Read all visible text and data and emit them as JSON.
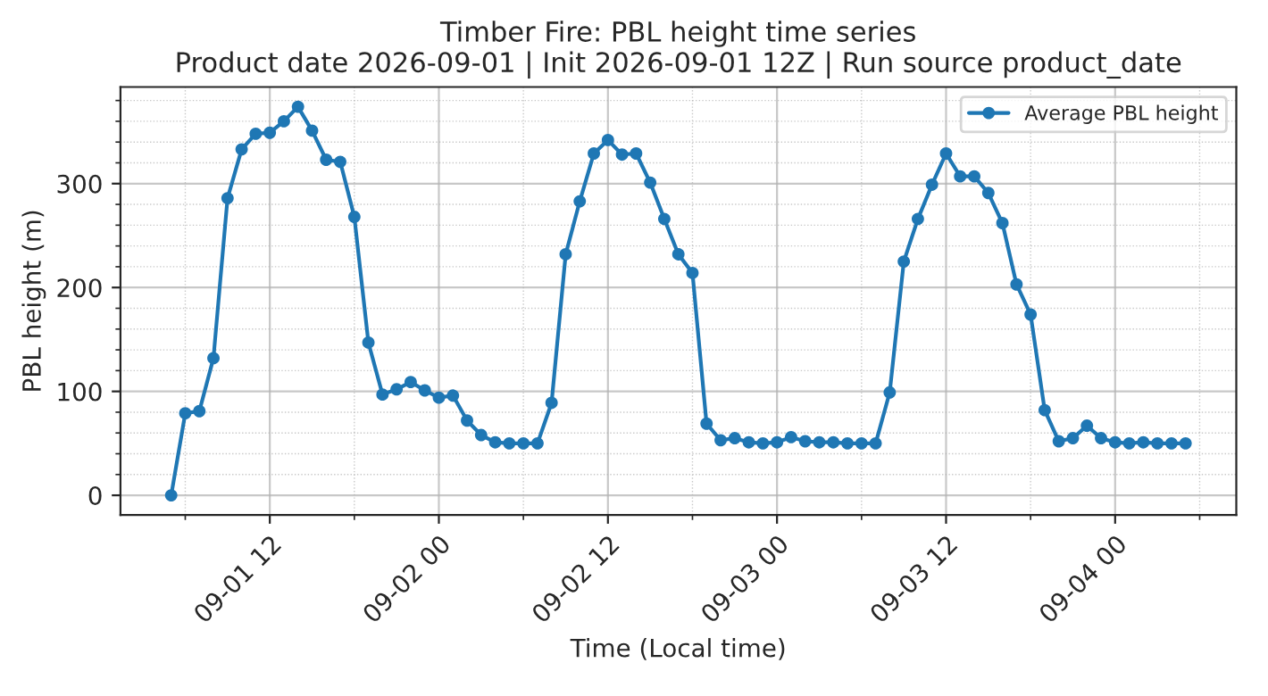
{
  "chart_data": {
    "type": "line",
    "title": "Timber Fire: PBL height time series\nProduct date 2026-09-01 | Init 2026-09-01 12Z | Run source product_date",
    "xlabel": "Time (Local time)",
    "ylabel": "PBL height (m)",
    "x": [
      "2026-09-01T05:00",
      "2026-09-01T06:00",
      "2026-09-01T07:00",
      "2026-09-01T08:00",
      "2026-09-01T09:00",
      "2026-09-01T10:00",
      "2026-09-01T11:00",
      "2026-09-01T12:00",
      "2026-09-01T13:00",
      "2026-09-01T14:00",
      "2026-09-01T15:00",
      "2026-09-01T16:00",
      "2026-09-01T17:00",
      "2026-09-01T18:00",
      "2026-09-01T19:00",
      "2026-09-01T20:00",
      "2026-09-01T21:00",
      "2026-09-01T22:00",
      "2026-09-01T23:00",
      "2026-09-02T00:00",
      "2026-09-02T01:00",
      "2026-09-02T02:00",
      "2026-09-02T03:00",
      "2026-09-02T04:00",
      "2026-09-02T05:00",
      "2026-09-02T06:00",
      "2026-09-02T07:00",
      "2026-09-02T08:00",
      "2026-09-02T09:00",
      "2026-09-02T10:00",
      "2026-09-02T11:00",
      "2026-09-02T12:00",
      "2026-09-02T13:00",
      "2026-09-02T14:00",
      "2026-09-02T15:00",
      "2026-09-02T16:00",
      "2026-09-02T17:00",
      "2026-09-02T18:00",
      "2026-09-02T19:00",
      "2026-09-02T20:00",
      "2026-09-02T21:00",
      "2026-09-02T22:00",
      "2026-09-02T23:00",
      "2026-09-03T00:00",
      "2026-09-03T01:00",
      "2026-09-03T02:00",
      "2026-09-03T03:00",
      "2026-09-03T04:00",
      "2026-09-03T05:00",
      "2026-09-03T06:00",
      "2026-09-03T07:00",
      "2026-09-03T08:00",
      "2026-09-03T09:00",
      "2026-09-03T10:00",
      "2026-09-03T11:00",
      "2026-09-03T12:00",
      "2026-09-03T13:00",
      "2026-09-03T14:00",
      "2026-09-03T15:00",
      "2026-09-03T16:00",
      "2026-09-03T17:00",
      "2026-09-03T18:00",
      "2026-09-03T19:00",
      "2026-09-03T20:00",
      "2026-09-03T21:00",
      "2026-09-03T22:00",
      "2026-09-03T23:00",
      "2026-09-04T00:00",
      "2026-09-04T01:00",
      "2026-09-04T02:00",
      "2026-09-04T03:00",
      "2026-09-04T04:00",
      "2026-09-04T05:00"
    ],
    "series": [
      {
        "name": "Average PBL height",
        "color": "#1f77b4",
        "values": [
          0,
          79,
          81,
          132,
          286,
          333,
          348,
          349,
          360,
          374,
          351,
          323,
          321,
          268,
          147,
          97,
          102,
          109,
          101,
          94,
          96,
          72,
          58,
          51,
          50,
          50,
          50,
          89,
          232,
          283,
          329,
          342,
          328,
          329,
          301,
          266,
          232,
          214,
          69,
          53,
          55,
          51,
          50,
          51,
          56,
          52,
          51,
          51,
          50,
          50,
          50,
          99,
          225,
          266,
          299,
          329,
          307,
          307,
          291,
          262,
          203,
          174,
          82,
          52,
          55,
          67,
          55,
          51,
          50,
          51,
          50,
          50,
          50
        ]
      }
    ],
    "xlim": [
      "2026-09-01T01:24",
      "2026-09-04T08:36"
    ],
    "xticks": [
      {
        "value": "2026-09-01T06:00",
        "label": null
      },
      {
        "value": "2026-09-01T12:00",
        "label": "09-01 12"
      },
      {
        "value": "2026-09-01T18:00",
        "label": null
      },
      {
        "value": "2026-09-02T00:00",
        "label": "09-02 00"
      },
      {
        "value": "2026-09-02T06:00",
        "label": null
      },
      {
        "value": "2026-09-02T12:00",
        "label": "09-02 12"
      },
      {
        "value": "2026-09-02T18:00",
        "label": null
      },
      {
        "value": "2026-09-03T00:00",
        "label": "09-03 00"
      },
      {
        "value": "2026-09-03T06:00",
        "label": null
      },
      {
        "value": "2026-09-03T12:00",
        "label": "09-03 12"
      },
      {
        "value": "2026-09-03T18:00",
        "label": null
      },
      {
        "value": "2026-09-04T00:00",
        "label": "09-04 00"
      },
      {
        "value": "2026-09-04T06:00",
        "label": null
      }
    ],
    "ylim": [
      -19,
      393
    ],
    "yticks": [
      0,
      {
        "value": 20,
        "label": null
      },
      {
        "value": 40,
        "label": null
      },
      {
        "value": 60,
        "label": null
      },
      {
        "value": 80,
        "label": null
      },
      100,
      {
        "value": 120,
        "label": null
      },
      {
        "value": 140,
        "label": null
      },
      {
        "value": 160,
        "label": null
      },
      {
        "value": 180,
        "label": null
      },
      200,
      {
        "value": 220,
        "label": null
      },
      {
        "value": 240,
        "label": null
      },
      {
        "value": 260,
        "label": null
      },
      {
        "value": 280,
        "label": null
      },
      300,
      {
        "value": 320,
        "label": null
      },
      {
        "value": 340,
        "label": null
      },
      {
        "value": 360,
        "label": null
      },
      {
        "value": 380,
        "label": null
      }
    ],
    "grid": true,
    "legend": "top right",
    "marker": "circle",
    "line_style": "solid"
  }
}
